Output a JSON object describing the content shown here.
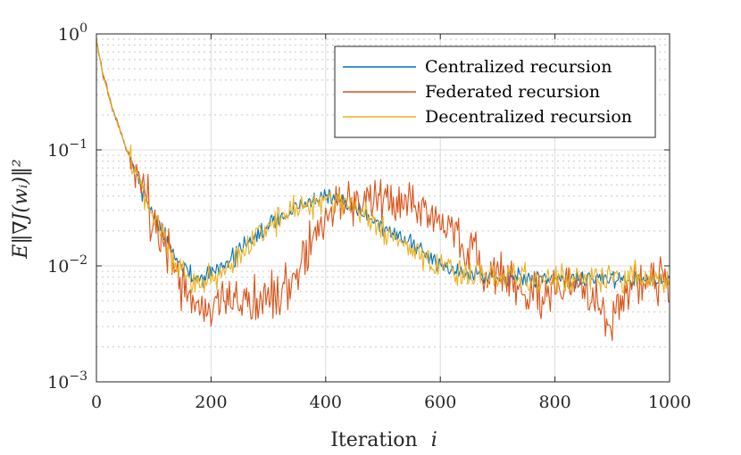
{
  "chart_data": {
    "type": "line",
    "title": "",
    "xlabel": "Iteration",
    "xlabel_var": "i",
    "ylabel": "E‖∇J(wᵢ)‖²",
    "xlim": [
      0,
      1000
    ],
    "ylim": [
      0.001,
      1
    ],
    "yscale": "log",
    "grid": true,
    "legend_position": "top-right",
    "x_ticks": [
      0,
      200,
      400,
      600,
      800,
      1000
    ],
    "x_tick_labels": [
      "0",
      "200",
      "400",
      "600",
      "800",
      "1000"
    ],
    "y_ticks": [
      0.001,
      0.01,
      0.1,
      1
    ],
    "y_tick_labels": [
      {
        "base": "10",
        "exp": "−3"
      },
      {
        "base": "10",
        "exp": "−2"
      },
      {
        "base": "10",
        "exp": "−1"
      },
      {
        "base": "10",
        "exp": "0"
      }
    ],
    "series": [
      {
        "name": "Centralized recursion",
        "color": "#0072BD",
        "anchors_x": [
          0,
          10,
          30,
          60,
          100,
          140,
          160,
          180,
          200,
          230,
          260,
          300,
          350,
          400,
          430,
          460,
          500,
          540,
          580,
          620,
          660,
          700,
          750,
          800,
          850,
          900,
          950,
          1000
        ],
        "anchors_y": [
          0.9,
          0.48,
          0.21,
          0.08,
          0.027,
          0.011,
          0.0085,
          0.0078,
          0.0085,
          0.011,
          0.015,
          0.022,
          0.032,
          0.039,
          0.036,
          0.03,
          0.022,
          0.016,
          0.012,
          0.0095,
          0.0085,
          0.008,
          0.0078,
          0.0078,
          0.0078,
          0.0078,
          0.0077,
          0.0076
        ],
        "noise": 0.06
      },
      {
        "name": "Federated recursion",
        "color": "#D95319",
        "anchors_x": [
          0,
          10,
          30,
          60,
          100,
          140,
          160,
          180,
          190,
          200,
          220,
          260,
          300,
          330,
          350,
          370,
          390,
          410,
          430,
          460,
          500,
          540,
          580,
          600,
          620,
          650,
          680,
          700,
          720,
          760,
          800,
          840,
          870,
          895,
          920,
          960,
          1000
        ],
        "anchors_y": [
          0.9,
          0.48,
          0.21,
          0.08,
          0.025,
          0.009,
          0.0065,
          0.0042,
          0.0036,
          0.0042,
          0.0048,
          0.0055,
          0.0053,
          0.0058,
          0.009,
          0.016,
          0.022,
          0.03,
          0.036,
          0.038,
          0.037,
          0.033,
          0.029,
          0.025,
          0.02,
          0.013,
          0.009,
          0.008,
          0.0065,
          0.0055,
          0.006,
          0.0065,
          0.005,
          0.0028,
          0.006,
          0.0075,
          0.0078
        ],
        "noise": 0.16
      },
      {
        "name": "Decentralized recursion",
        "color": "#EDB120",
        "anchors_x": [
          0,
          10,
          30,
          60,
          100,
          140,
          160,
          180,
          200,
          230,
          260,
          300,
          350,
          400,
          430,
          460,
          500,
          540,
          580,
          620,
          660,
          700,
          750,
          800,
          850,
          900,
          950,
          1000
        ],
        "anchors_y": [
          0.9,
          0.48,
          0.21,
          0.08,
          0.026,
          0.01,
          0.0078,
          0.0068,
          0.0075,
          0.01,
          0.0145,
          0.022,
          0.032,
          0.04,
          0.036,
          0.029,
          0.021,
          0.015,
          0.0115,
          0.0093,
          0.0084,
          0.008,
          0.0078,
          0.0078,
          0.0078,
          0.0078,
          0.0077,
          0.0076
        ],
        "noise": 0.1
      }
    ]
  }
}
